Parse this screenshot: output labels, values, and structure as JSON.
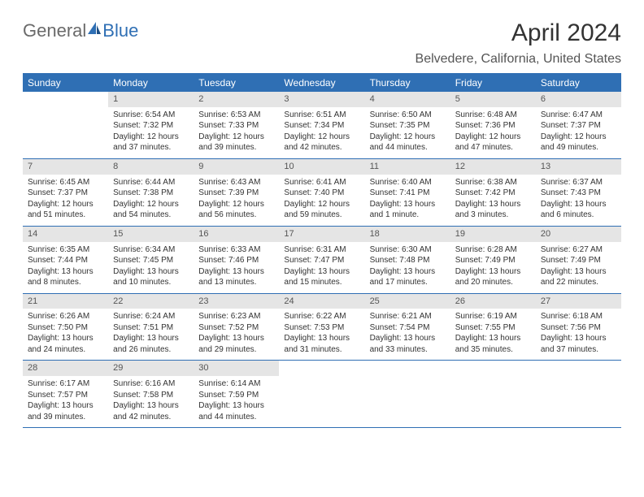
{
  "logo": {
    "text1": "General",
    "text2": "Blue"
  },
  "title": "April 2024",
  "subtitle": "Belvedere, California, United States",
  "weekdays": [
    "Sunday",
    "Monday",
    "Tuesday",
    "Wednesday",
    "Thursday",
    "Friday",
    "Saturday"
  ],
  "colors": {
    "accent": "#2f6fb4",
    "day_number_bg": "#e5e5e5",
    "text": "#333333",
    "logo_gray": "#6a6a6a"
  },
  "weeks": [
    [
      {
        "day": "",
        "sunrise": "",
        "sunset": "",
        "daylight1": "",
        "daylight2": ""
      },
      {
        "day": "1",
        "sunrise": "Sunrise: 6:54 AM",
        "sunset": "Sunset: 7:32 PM",
        "daylight1": "Daylight: 12 hours",
        "daylight2": "and 37 minutes."
      },
      {
        "day": "2",
        "sunrise": "Sunrise: 6:53 AM",
        "sunset": "Sunset: 7:33 PM",
        "daylight1": "Daylight: 12 hours",
        "daylight2": "and 39 minutes."
      },
      {
        "day": "3",
        "sunrise": "Sunrise: 6:51 AM",
        "sunset": "Sunset: 7:34 PM",
        "daylight1": "Daylight: 12 hours",
        "daylight2": "and 42 minutes."
      },
      {
        "day": "4",
        "sunrise": "Sunrise: 6:50 AM",
        "sunset": "Sunset: 7:35 PM",
        "daylight1": "Daylight: 12 hours",
        "daylight2": "and 44 minutes."
      },
      {
        "day": "5",
        "sunrise": "Sunrise: 6:48 AM",
        "sunset": "Sunset: 7:36 PM",
        "daylight1": "Daylight: 12 hours",
        "daylight2": "and 47 minutes."
      },
      {
        "day": "6",
        "sunrise": "Sunrise: 6:47 AM",
        "sunset": "Sunset: 7:37 PM",
        "daylight1": "Daylight: 12 hours",
        "daylight2": "and 49 minutes."
      }
    ],
    [
      {
        "day": "7",
        "sunrise": "Sunrise: 6:45 AM",
        "sunset": "Sunset: 7:37 PM",
        "daylight1": "Daylight: 12 hours",
        "daylight2": "and 51 minutes."
      },
      {
        "day": "8",
        "sunrise": "Sunrise: 6:44 AM",
        "sunset": "Sunset: 7:38 PM",
        "daylight1": "Daylight: 12 hours",
        "daylight2": "and 54 minutes."
      },
      {
        "day": "9",
        "sunrise": "Sunrise: 6:43 AM",
        "sunset": "Sunset: 7:39 PM",
        "daylight1": "Daylight: 12 hours",
        "daylight2": "and 56 minutes."
      },
      {
        "day": "10",
        "sunrise": "Sunrise: 6:41 AM",
        "sunset": "Sunset: 7:40 PM",
        "daylight1": "Daylight: 12 hours",
        "daylight2": "and 59 minutes."
      },
      {
        "day": "11",
        "sunrise": "Sunrise: 6:40 AM",
        "sunset": "Sunset: 7:41 PM",
        "daylight1": "Daylight: 13 hours",
        "daylight2": "and 1 minute."
      },
      {
        "day": "12",
        "sunrise": "Sunrise: 6:38 AM",
        "sunset": "Sunset: 7:42 PM",
        "daylight1": "Daylight: 13 hours",
        "daylight2": "and 3 minutes."
      },
      {
        "day": "13",
        "sunrise": "Sunrise: 6:37 AM",
        "sunset": "Sunset: 7:43 PM",
        "daylight1": "Daylight: 13 hours",
        "daylight2": "and 6 minutes."
      }
    ],
    [
      {
        "day": "14",
        "sunrise": "Sunrise: 6:35 AM",
        "sunset": "Sunset: 7:44 PM",
        "daylight1": "Daylight: 13 hours",
        "daylight2": "and 8 minutes."
      },
      {
        "day": "15",
        "sunrise": "Sunrise: 6:34 AM",
        "sunset": "Sunset: 7:45 PM",
        "daylight1": "Daylight: 13 hours",
        "daylight2": "and 10 minutes."
      },
      {
        "day": "16",
        "sunrise": "Sunrise: 6:33 AM",
        "sunset": "Sunset: 7:46 PM",
        "daylight1": "Daylight: 13 hours",
        "daylight2": "and 13 minutes."
      },
      {
        "day": "17",
        "sunrise": "Sunrise: 6:31 AM",
        "sunset": "Sunset: 7:47 PM",
        "daylight1": "Daylight: 13 hours",
        "daylight2": "and 15 minutes."
      },
      {
        "day": "18",
        "sunrise": "Sunrise: 6:30 AM",
        "sunset": "Sunset: 7:48 PM",
        "daylight1": "Daylight: 13 hours",
        "daylight2": "and 17 minutes."
      },
      {
        "day": "19",
        "sunrise": "Sunrise: 6:28 AM",
        "sunset": "Sunset: 7:49 PM",
        "daylight1": "Daylight: 13 hours",
        "daylight2": "and 20 minutes."
      },
      {
        "day": "20",
        "sunrise": "Sunrise: 6:27 AM",
        "sunset": "Sunset: 7:49 PM",
        "daylight1": "Daylight: 13 hours",
        "daylight2": "and 22 minutes."
      }
    ],
    [
      {
        "day": "21",
        "sunrise": "Sunrise: 6:26 AM",
        "sunset": "Sunset: 7:50 PM",
        "daylight1": "Daylight: 13 hours",
        "daylight2": "and 24 minutes."
      },
      {
        "day": "22",
        "sunrise": "Sunrise: 6:24 AM",
        "sunset": "Sunset: 7:51 PM",
        "daylight1": "Daylight: 13 hours",
        "daylight2": "and 26 minutes."
      },
      {
        "day": "23",
        "sunrise": "Sunrise: 6:23 AM",
        "sunset": "Sunset: 7:52 PM",
        "daylight1": "Daylight: 13 hours",
        "daylight2": "and 29 minutes."
      },
      {
        "day": "24",
        "sunrise": "Sunrise: 6:22 AM",
        "sunset": "Sunset: 7:53 PM",
        "daylight1": "Daylight: 13 hours",
        "daylight2": "and 31 minutes."
      },
      {
        "day": "25",
        "sunrise": "Sunrise: 6:21 AM",
        "sunset": "Sunset: 7:54 PM",
        "daylight1": "Daylight: 13 hours",
        "daylight2": "and 33 minutes."
      },
      {
        "day": "26",
        "sunrise": "Sunrise: 6:19 AM",
        "sunset": "Sunset: 7:55 PM",
        "daylight1": "Daylight: 13 hours",
        "daylight2": "and 35 minutes."
      },
      {
        "day": "27",
        "sunrise": "Sunrise: 6:18 AM",
        "sunset": "Sunset: 7:56 PM",
        "daylight1": "Daylight: 13 hours",
        "daylight2": "and 37 minutes."
      }
    ],
    [
      {
        "day": "28",
        "sunrise": "Sunrise: 6:17 AM",
        "sunset": "Sunset: 7:57 PM",
        "daylight1": "Daylight: 13 hours",
        "daylight2": "and 39 minutes."
      },
      {
        "day": "29",
        "sunrise": "Sunrise: 6:16 AM",
        "sunset": "Sunset: 7:58 PM",
        "daylight1": "Daylight: 13 hours",
        "daylight2": "and 42 minutes."
      },
      {
        "day": "30",
        "sunrise": "Sunrise: 6:14 AM",
        "sunset": "Sunset: 7:59 PM",
        "daylight1": "Daylight: 13 hours",
        "daylight2": "and 44 minutes."
      },
      {
        "day": "",
        "sunrise": "",
        "sunset": "",
        "daylight1": "",
        "daylight2": ""
      },
      {
        "day": "",
        "sunrise": "",
        "sunset": "",
        "daylight1": "",
        "daylight2": ""
      },
      {
        "day": "",
        "sunrise": "",
        "sunset": "",
        "daylight1": "",
        "daylight2": ""
      },
      {
        "day": "",
        "sunrise": "",
        "sunset": "",
        "daylight1": "",
        "daylight2": ""
      }
    ]
  ]
}
